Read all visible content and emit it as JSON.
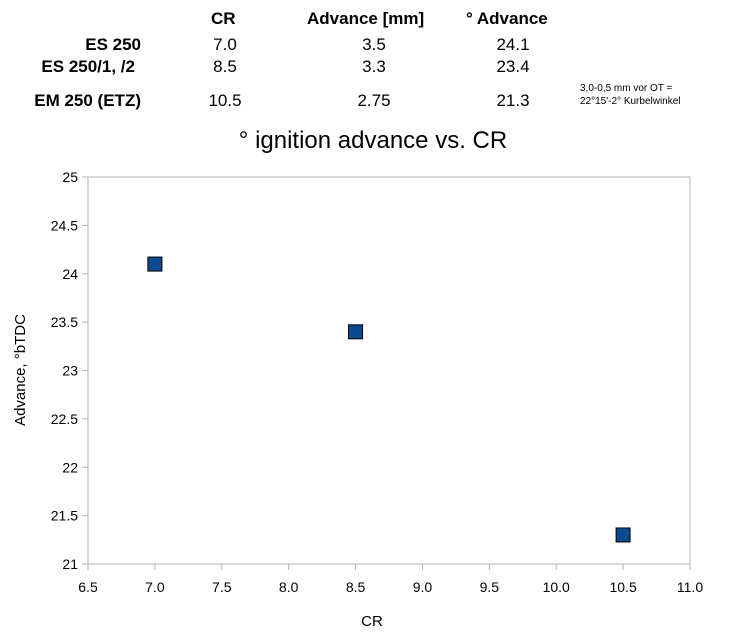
{
  "table": {
    "headers": [
      "CR",
      "Advance [mm]",
      "° Advance"
    ],
    "rows": [
      {
        "label": "ES 250",
        "cr": "7.0",
        "mm": "3.5",
        "deg": "24.1"
      },
      {
        "label": "ES 250/1, /2",
        "cr": "8.5",
        "mm": "3.3",
        "deg": "23.4"
      },
      {
        "label": "EM 250 (ETZ)",
        "cr": "10.5",
        "mm": "2.75",
        "deg": "21.3"
      }
    ],
    "note_line1": "3,0-0,5 mm vor OT =",
    "note_line2": "22°15'-2° Kurbelwinkel"
  },
  "chart_data": {
    "type": "scatter",
    "title": "° ignition advance vs. CR",
    "xlabel": "CR",
    "ylabel": "Advance, °bTDC",
    "xlim": [
      6.5,
      11.0
    ],
    "ylim": [
      21,
      25
    ],
    "xticks": [
      "6.5",
      "7.0",
      "7.5",
      "8.0",
      "8.5",
      "9.0",
      "9.5",
      "10.0",
      "10.5",
      "11.0"
    ],
    "yticks": [
      "21",
      "21.5",
      "22",
      "22.5",
      "23",
      "23.5",
      "24",
      "24.5",
      "25"
    ],
    "grid": false,
    "marker_color": "#0b4a8f",
    "series": [
      {
        "x": [
          7.0,
          8.5,
          10.5
        ],
        "y": [
          24.1,
          23.4,
          21.3
        ]
      }
    ]
  }
}
